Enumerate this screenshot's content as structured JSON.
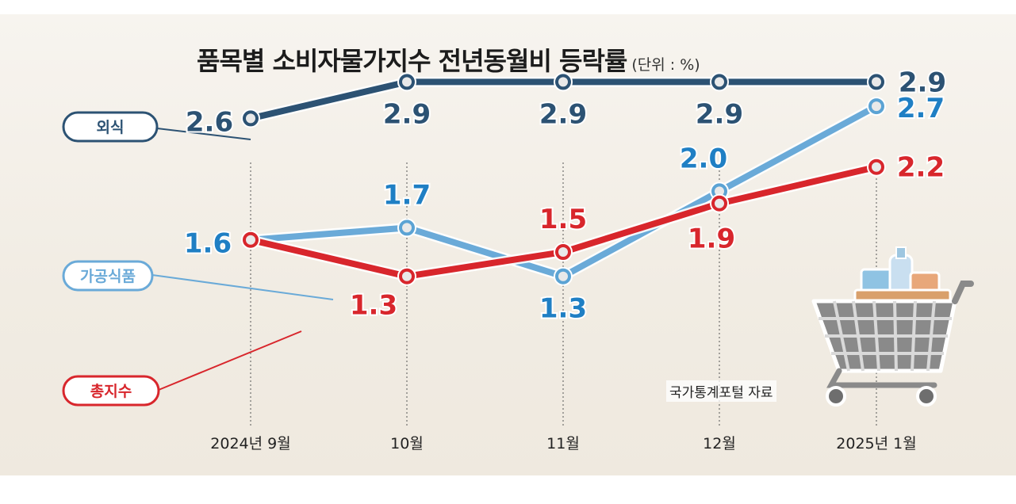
{
  "header": {
    "title": "품목별 소비자물가지수 전년동월비 등락률",
    "unit": "(단위 : %)"
  },
  "source": "국가통계포털 자료",
  "colors": {
    "dining": "#2c5273",
    "processed": "#5ba3d4",
    "total": "#d8262c",
    "processed_text": "#1f7fc4",
    "total_text": "#d8262c",
    "dining_text": "#2c5273"
  },
  "icons": [
    "shopping-cart-icon"
  ],
  "chart_data": {
    "type": "line",
    "title": "품목별 소비자물가지수 전년동월비 등락률",
    "unit": "(단위 : %)",
    "categories": [
      "2024년 9월",
      "10월",
      "11월",
      "12월",
      "2025년 1월"
    ],
    "grid": "vertical dotted guides at each month",
    "legend_placement": "left",
    "series": [
      {
        "name": "외식",
        "values": [
          2.6,
          2.9,
          2.9,
          2.9,
          2.9
        ],
        "labels": [
          "2.6",
          "2.9",
          "2.9",
          "2.9",
          "2.9"
        ]
      },
      {
        "name": "가공식품",
        "values": [
          1.6,
          1.7,
          1.3,
          2.0,
          2.7
        ],
        "labels": [
          "1.6",
          "1.7",
          "1.3",
          "2.0",
          "2.7"
        ]
      },
      {
        "name": "총지수",
        "values": [
          1.6,
          1.3,
          1.5,
          1.9,
          2.2
        ],
        "labels": [
          "",
          "1.3",
          "1.5",
          "1.9",
          "2.2"
        ]
      }
    ]
  }
}
